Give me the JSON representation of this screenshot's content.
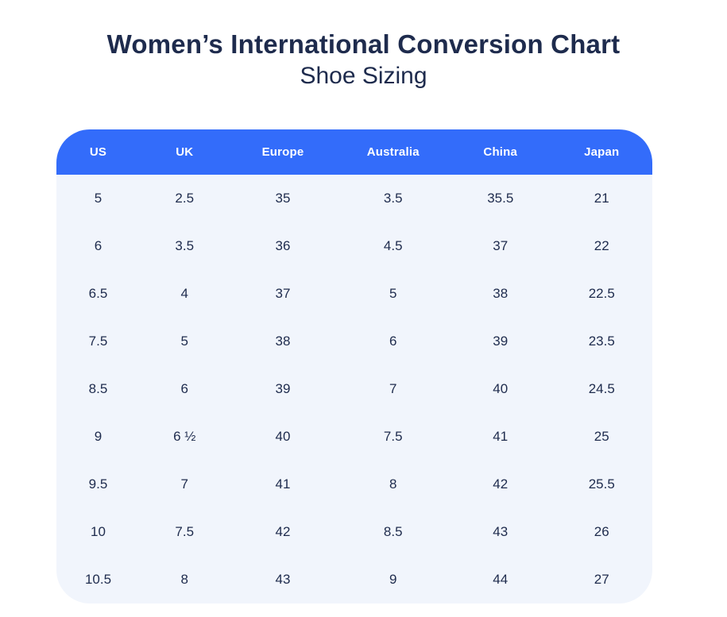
{
  "page": {
    "title": "Women’s International Conversion Chart",
    "subtitle": "Shoe Sizing"
  },
  "colors": {
    "header_bg": "#336CFA",
    "header_text": "#FFFFFF",
    "body_bg": "#F1F5FC",
    "text_dark": "#1E2B4D",
    "page_bg": "#FFFFFF"
  },
  "chart_data": {
    "type": "table",
    "title": "Women’s International Conversion Chart",
    "subtitle": "Shoe Sizing",
    "columns": [
      "US",
      "UK",
      "Europe",
      "Australia",
      "China",
      "Japan"
    ],
    "rows": [
      [
        "5",
        "2.5",
        "35",
        "3.5",
        "35.5",
        "21"
      ],
      [
        "6",
        "3.5",
        "36",
        "4.5",
        "37",
        "22"
      ],
      [
        "6.5",
        "4",
        "37",
        "5",
        "38",
        "22.5"
      ],
      [
        "7.5",
        "5",
        "38",
        "6",
        "39",
        "23.5"
      ],
      [
        "8.5",
        "6",
        "39",
        "7",
        "40",
        "24.5"
      ],
      [
        "9",
        "6 ½",
        "40",
        "7.5",
        "41",
        "25"
      ],
      [
        "9.5",
        "7",
        "41",
        "8",
        "42",
        "25.5"
      ],
      [
        "10",
        "7.5",
        "42",
        "8.5",
        "43",
        "26"
      ],
      [
        "10.5",
        "8",
        "43",
        "9",
        "44",
        "27"
      ]
    ],
    "layout": {
      "legend": false,
      "grid": false,
      "header_style": "solid-blue-rounded",
      "column_width_percents": [
        14,
        15,
        18,
        19,
        17,
        17
      ]
    }
  }
}
